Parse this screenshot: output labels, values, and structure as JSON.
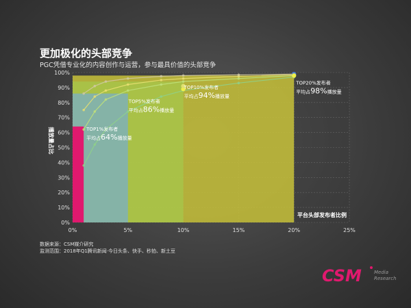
{
  "title": "更加极化的头部竞争",
  "subtitle": "PGC凭借专业化的内容创作与运营，参与最具价值的头部竞争",
  "source_line1": "数据来源：CSM媒介研究",
  "source_line2": "监测范围：2018年Q1腾讯新闻·今日头条、快手、秒拍、新土豆",
  "logo": {
    "text": "CSM",
    "sub1": "Media",
    "sub2": "Research",
    "color": "#e0196e"
  },
  "chart_data": {
    "type": "area",
    "title": "",
    "xlabel": "平台头部发布者比例",
    "ylabel": "播放量占比",
    "xlim": [
      0,
      25
    ],
    "ylim": [
      0,
      100
    ],
    "x_ticks": [
      "0%",
      "5%",
      "10%",
      "15%",
      "20%",
      "25%"
    ],
    "y_ticks": [
      "0%",
      "10%",
      "20%",
      "30%",
      "40%",
      "50%",
      "60%",
      "70%",
      "80%",
      "90%",
      "100%"
    ],
    "grid": true,
    "blocks": [
      {
        "name": "TOP20%",
        "x": 20,
        "y": 98,
        "color": "#c8c23a"
      },
      {
        "name": "TOP10%",
        "x": 10,
        "y": 94,
        "color": "#a7c44a"
      },
      {
        "name": "TOP5%",
        "x": 5,
        "y": 86,
        "color": "#7fb0b8"
      },
      {
        "name": "TOP1%",
        "x": 1,
        "y": 64,
        "color": "#e0196e"
      }
    ],
    "annotations": [
      {
        "line1": "TOP1%发布者",
        "line2a": "平均占",
        "value": "64%",
        "line2b": "播放量",
        "x": 1,
        "y": 64
      },
      {
        "line1": "TOP5%发布者",
        "line2a": "平均占",
        "value": "86%",
        "line2b": "播放量",
        "x": 5,
        "y": 86
      },
      {
        "line1": "TOP10%发布者",
        "line2a": "平均占",
        "value": "94%",
        "line2b": "播放量",
        "x": 10,
        "y": 94
      },
      {
        "line1": "TOP20%发布者",
        "line2a": "平均占",
        "value": "98%",
        "line2b": "播放量",
        "x": 20,
        "y": 98
      }
    ],
    "series": [
      {
        "color": "#8fd08a",
        "x": [
          1,
          2,
          3,
          5,
          8,
          10,
          15,
          20
        ],
        "y": [
          38,
          52,
          62,
          74,
          84,
          88,
          93,
          97
        ]
      },
      {
        "color": "#bfe07a",
        "x": [
          1,
          2,
          3,
          5,
          8,
          10,
          15,
          20
        ],
        "y": [
          62,
          74,
          82,
          88,
          92,
          94,
          96,
          98
        ]
      },
      {
        "color": "#e8e070",
        "x": [
          1,
          2,
          3,
          5,
          8,
          10,
          15,
          20
        ],
        "y": [
          75,
          84,
          88,
          92,
          95,
          96,
          97.5,
          98.5
        ]
      },
      {
        "color": "#d0c8a0",
        "x": [
          1,
          2,
          3,
          5,
          8,
          10,
          15,
          20
        ],
        "y": [
          86,
          91,
          94,
          96,
          97.5,
          98,
          98.5,
          99
        ]
      }
    ],
    "markers": [
      {
        "x": 10,
        "y": 89,
        "color": "#f0f04a"
      },
      {
        "x": 10,
        "y": 91,
        "color": "#e0e070"
      },
      {
        "x": 20,
        "y": 99,
        "color": "#4b7fd6"
      },
      {
        "x": 20,
        "y": 98,
        "color": "#f0f04a"
      }
    ]
  }
}
